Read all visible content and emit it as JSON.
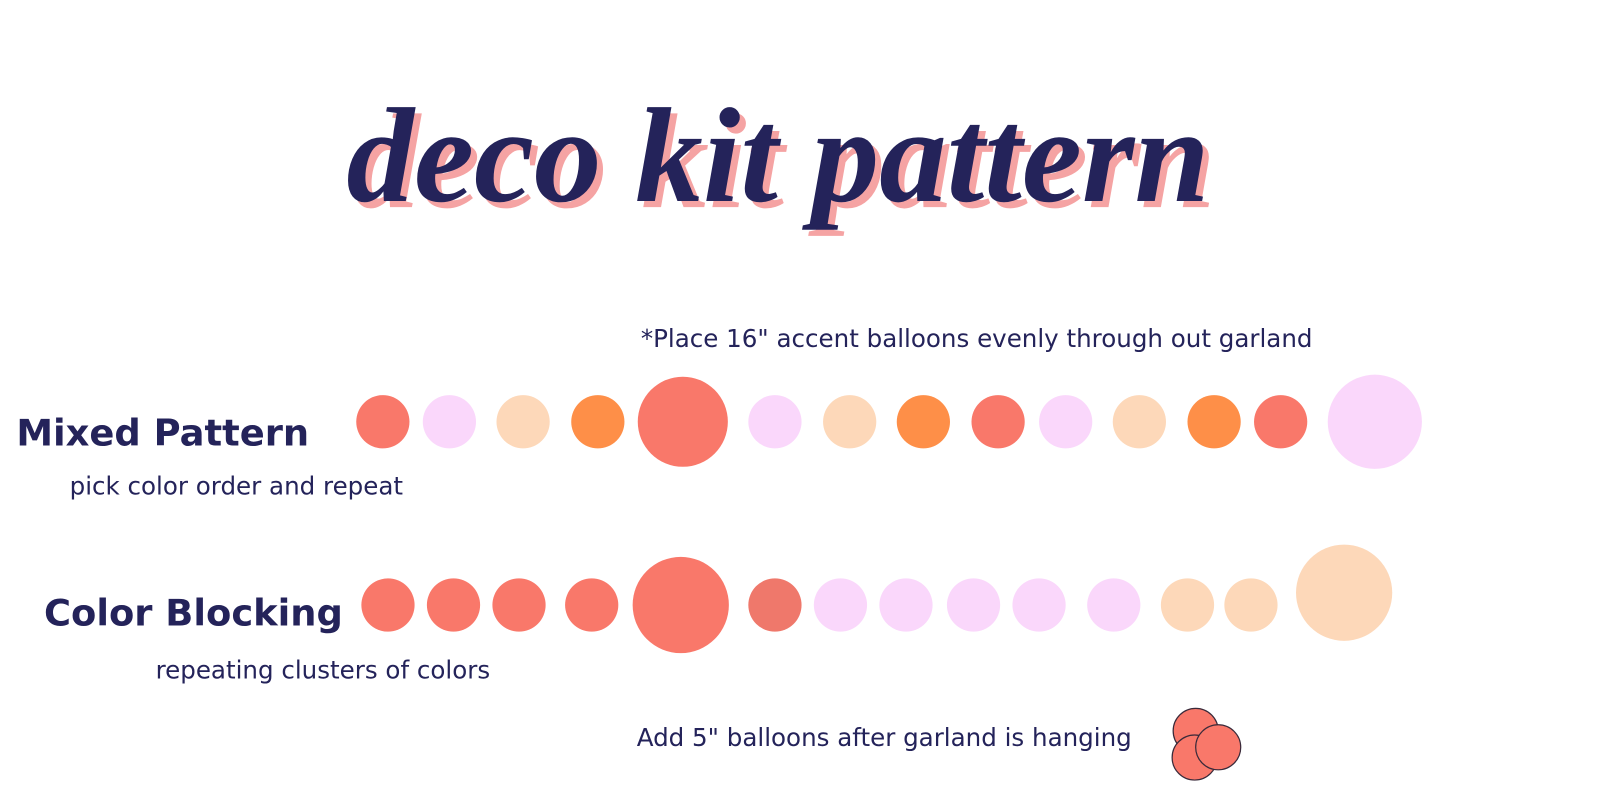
{
  "title": "deco kit pattern",
  "accent_note": "*Place 16\" accent balloons evenly through out garland",
  "patterns": [
    {
      "label": "Mixed Pattern",
      "description": "pick color order and repeat"
    },
    {
      "label": "Color Blocking",
      "description": "repeating clusters of colors"
    }
  ],
  "footer_note": "Add 5\" balloons after garland is hanging"
}
